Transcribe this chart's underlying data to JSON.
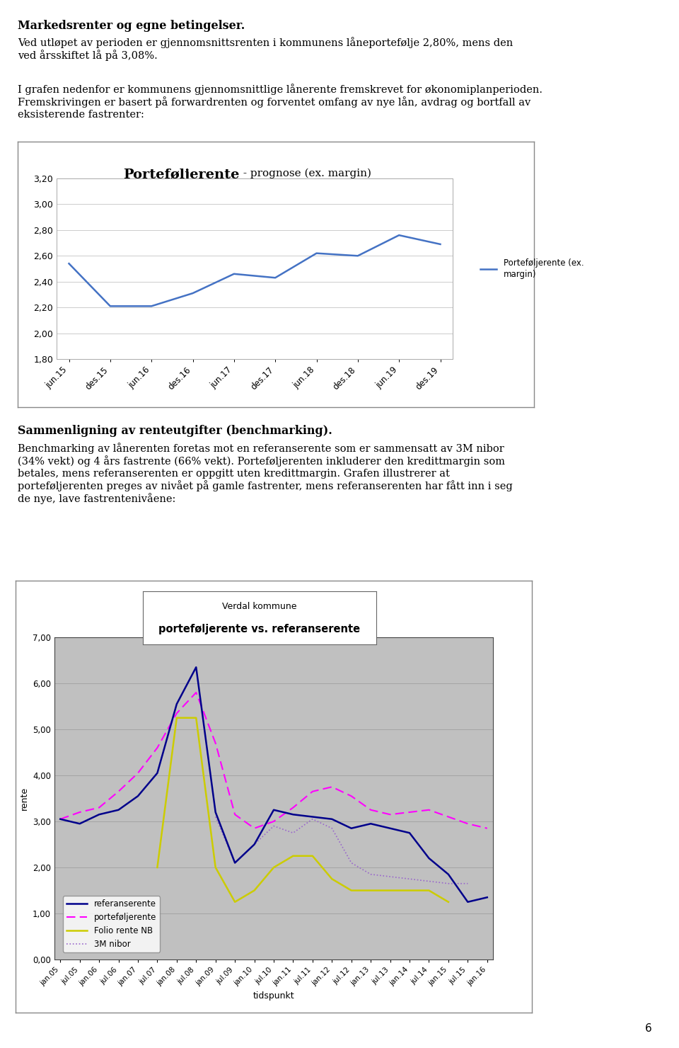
{
  "title_bold": "Markedsrenter og egne betingelser.",
  "para1": "Ved utløpet av perioden er gjennomsnittsrenten i kommunens låneportefølje 2,80%, mens den\nved årsskiftet lå på 3,08%.",
  "para2": "I grafen nedenfor er kommunens gjennomsnittlige lånerente fremskrevet for økonomiplanperioden.\nFremskrivingen er basert på forwardrenten og forventet omfang av nye lån, avdrag og bortfall av\neksisterende fastrenter:",
  "chart1_title_bold": "Porteføljerente",
  "chart1_title_normal": " - prognose (ex. margin)",
  "chart1_labels": [
    "jun.15",
    "des.15",
    "jun.16",
    "des.16",
    "jun.17",
    "des.17",
    "jun.18",
    "des.18",
    "jun.19",
    "des.19"
  ],
  "chart1_values": [
    2.54,
    2.21,
    2.21,
    2.31,
    2.46,
    2.43,
    2.62,
    2.6,
    2.76,
    2.69
  ],
  "chart1_line_color": "#4472C4",
  "chart1_legend_label": "Porteføljerente (ex.\nmargin)",
  "chart1_ylim": [
    1.8,
    3.2
  ],
  "chart1_yticks": [
    1.8,
    2.0,
    2.2,
    2.4,
    2.6,
    2.8,
    3.0,
    3.2
  ],
  "chart2_title_line1": "Verdal kommune",
  "chart2_title_line2": "porteføljerente vs. referanserente",
  "chart2_xlabel": "tidspunkt",
  "chart2_ylabel": "rente",
  "chart2_ylim": [
    0.0,
    7.0
  ],
  "chart2_yticks": [
    0.0,
    1.0,
    2.0,
    3.0,
    4.0,
    5.0,
    6.0,
    7.0
  ],
  "chart2_bg": "#C0C0C0",
  "chart2_labels": [
    "jan.05",
    "jul.05",
    "jan.06",
    "jul.06",
    "jan.07",
    "jul.07",
    "jan.08",
    "jul.08",
    "jan.09",
    "jul.09",
    "jan.10",
    "jul.10",
    "jan.11",
    "jul.11",
    "jan.12",
    "jul.12",
    "jan.13",
    "jul.13",
    "jan.14",
    "jul.14",
    "jan.15",
    "jul.15",
    "jan.16"
  ],
  "referanserente": [
    3.05,
    2.95,
    3.15,
    3.25,
    3.55,
    4.05,
    5.55,
    6.35,
    3.2,
    2.1,
    2.5,
    3.25,
    3.15,
    3.1,
    3.05,
    2.85,
    2.95,
    2.85,
    2.75,
    2.2,
    1.85,
    1.25,
    1.35
  ],
  "portefoljerente2": [
    3.05,
    3.2,
    3.3,
    3.65,
    4.05,
    4.6,
    5.35,
    5.8,
    4.7,
    3.15,
    2.85,
    3.0,
    3.3,
    3.65,
    3.75,
    3.55,
    3.25,
    3.15,
    3.2,
    3.25,
    3.1,
    2.95,
    2.85
  ],
  "foliorente": [
    null,
    null,
    null,
    null,
    null,
    2.0,
    5.25,
    5.25,
    2.0,
    1.25,
    1.5,
    2.0,
    2.25,
    2.25,
    1.75,
    1.5,
    1.5,
    1.5,
    1.5,
    1.5,
    1.25,
    null,
    null
  ],
  "nibor3m": [
    null,
    null,
    null,
    null,
    null,
    null,
    null,
    null,
    3.1,
    2.1,
    2.5,
    2.9,
    2.75,
    3.05,
    2.85,
    2.1,
    1.85,
    1.8,
    1.75,
    1.7,
    1.65,
    1.65,
    null
  ],
  "ref_color": "#00008B",
  "port2_color": "#FF00FF",
  "folio_color": "#CCCC00",
  "nibor_color": "#9966CC",
  "section2_title_bold": "Sammenligning av renteutgifter (benchmarking).",
  "section2_para": "Benchmarking av lånerenten foretas mot en referanserente som er sammensatt av 3M nibor\n(34% vekt) og 4 års fastrente (66% vekt). Porteføljerenten inkluderer den kredittmargin som\nbetales, mens referanserenten er oppgitt uten kredittmargin. Grafen illustrerer at\nporteføljerenten preges av nivået på gamle fastrenter, mens referanserenten har fått inn i seg\nde nye, lave fastrentenivåene:",
  "page_number": "6"
}
